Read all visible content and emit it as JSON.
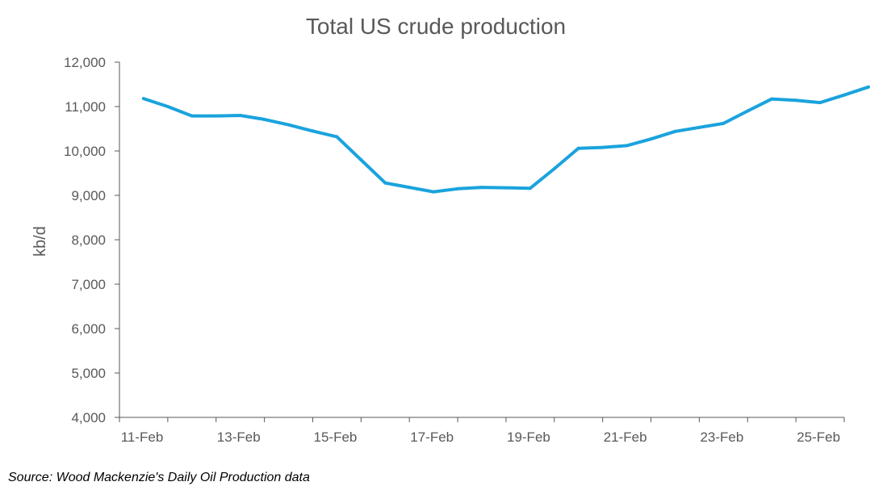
{
  "chart_data": {
    "type": "line",
    "title": "Total US crude production",
    "xlabel": "",
    "ylabel": "kb/d",
    "xlim": [
      "2021-02-11",
      "2021-02-26"
    ],
    "ylim": [
      4000,
      12000
    ],
    "yticks": [
      4000,
      5000,
      6000,
      7000,
      8000,
      9000,
      10000,
      11000,
      12000
    ],
    "ytick_labels": [
      "4,000",
      "5,000",
      "6,000",
      "7,000",
      "8,000",
      "9,000",
      "10,000",
      "11,000",
      "12,000"
    ],
    "xticks": [
      "2021-02-11",
      "2021-02-13",
      "2021-02-15",
      "2021-02-17",
      "2021-02-19",
      "2021-02-21",
      "2021-02-23",
      "2021-02-25"
    ],
    "xtick_labels": [
      "11-Feb",
      "13-Feb",
      "15-Feb",
      "17-Feb",
      "19-Feb",
      "21-Feb",
      "23-Feb",
      "25-Feb"
    ],
    "grid": false,
    "line_color": "#1aa3dd",
    "axis_color": "#595959",
    "series": [
      {
        "x": [
          "2021-02-11 12:00",
          "2021-02-12",
          "2021-02-12 12:00",
          "2021-02-13",
          "2021-02-13 12:00",
          "2021-02-14",
          "2021-02-14 12:00",
          "2021-02-15",
          "2021-02-15 12:00",
          "2021-02-16",
          "2021-02-16 12:00",
          "2021-02-17",
          "2021-02-17 12:00",
          "2021-02-18",
          "2021-02-18 12:00",
          "2021-02-19",
          "2021-02-19 12:00",
          "2021-02-20",
          "2021-02-20 12:00",
          "2021-02-21",
          "2021-02-21 12:00",
          "2021-02-22",
          "2021-02-22 12:00",
          "2021-02-23",
          "2021-02-23 12:00",
          "2021-02-24",
          "2021-02-24 12:00",
          "2021-02-25",
          "2021-02-25 12:00",
          "2021-02-26",
          "2021-02-26 12:00"
        ],
        "values": [
          11180,
          11000,
          10790,
          10790,
          10800,
          10710,
          10590,
          10450,
          10320,
          9800,
          9280,
          9180,
          9080,
          9150,
          9180,
          9170,
          9160,
          9600,
          10060,
          10080,
          10120,
          10270,
          10440,
          10530,
          10620,
          10900,
          11170,
          11140,
          11090,
          11260,
          11440
        ]
      }
    ]
  },
  "footnote": "Source: Wood Mackenzie's Daily Oil Production data"
}
